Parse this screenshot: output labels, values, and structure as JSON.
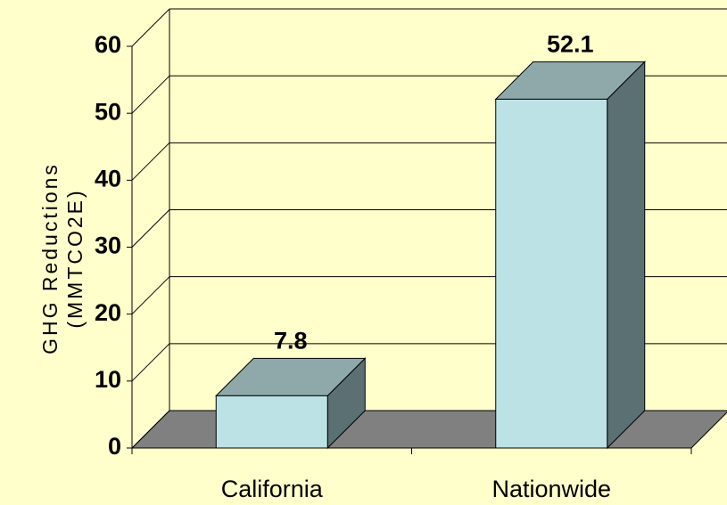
{
  "chart_data": {
    "type": "bar3d",
    "ylabel": [
      "GHG Reductions",
      "(MMTCO2E)"
    ],
    "categories": [
      "California",
      "Nationwide"
    ],
    "values": [
      7.8,
      52.1
    ],
    "colors": {
      "front": "#bde2e5",
      "top": "#8fa9ab",
      "side": "#5b7072",
      "floor": "#808080",
      "background": "#ffffcc"
    },
    "ylim": [
      0,
      60
    ],
    "yticks": [
      0,
      10,
      20,
      30,
      40,
      50,
      60
    ],
    "grid": true
  }
}
